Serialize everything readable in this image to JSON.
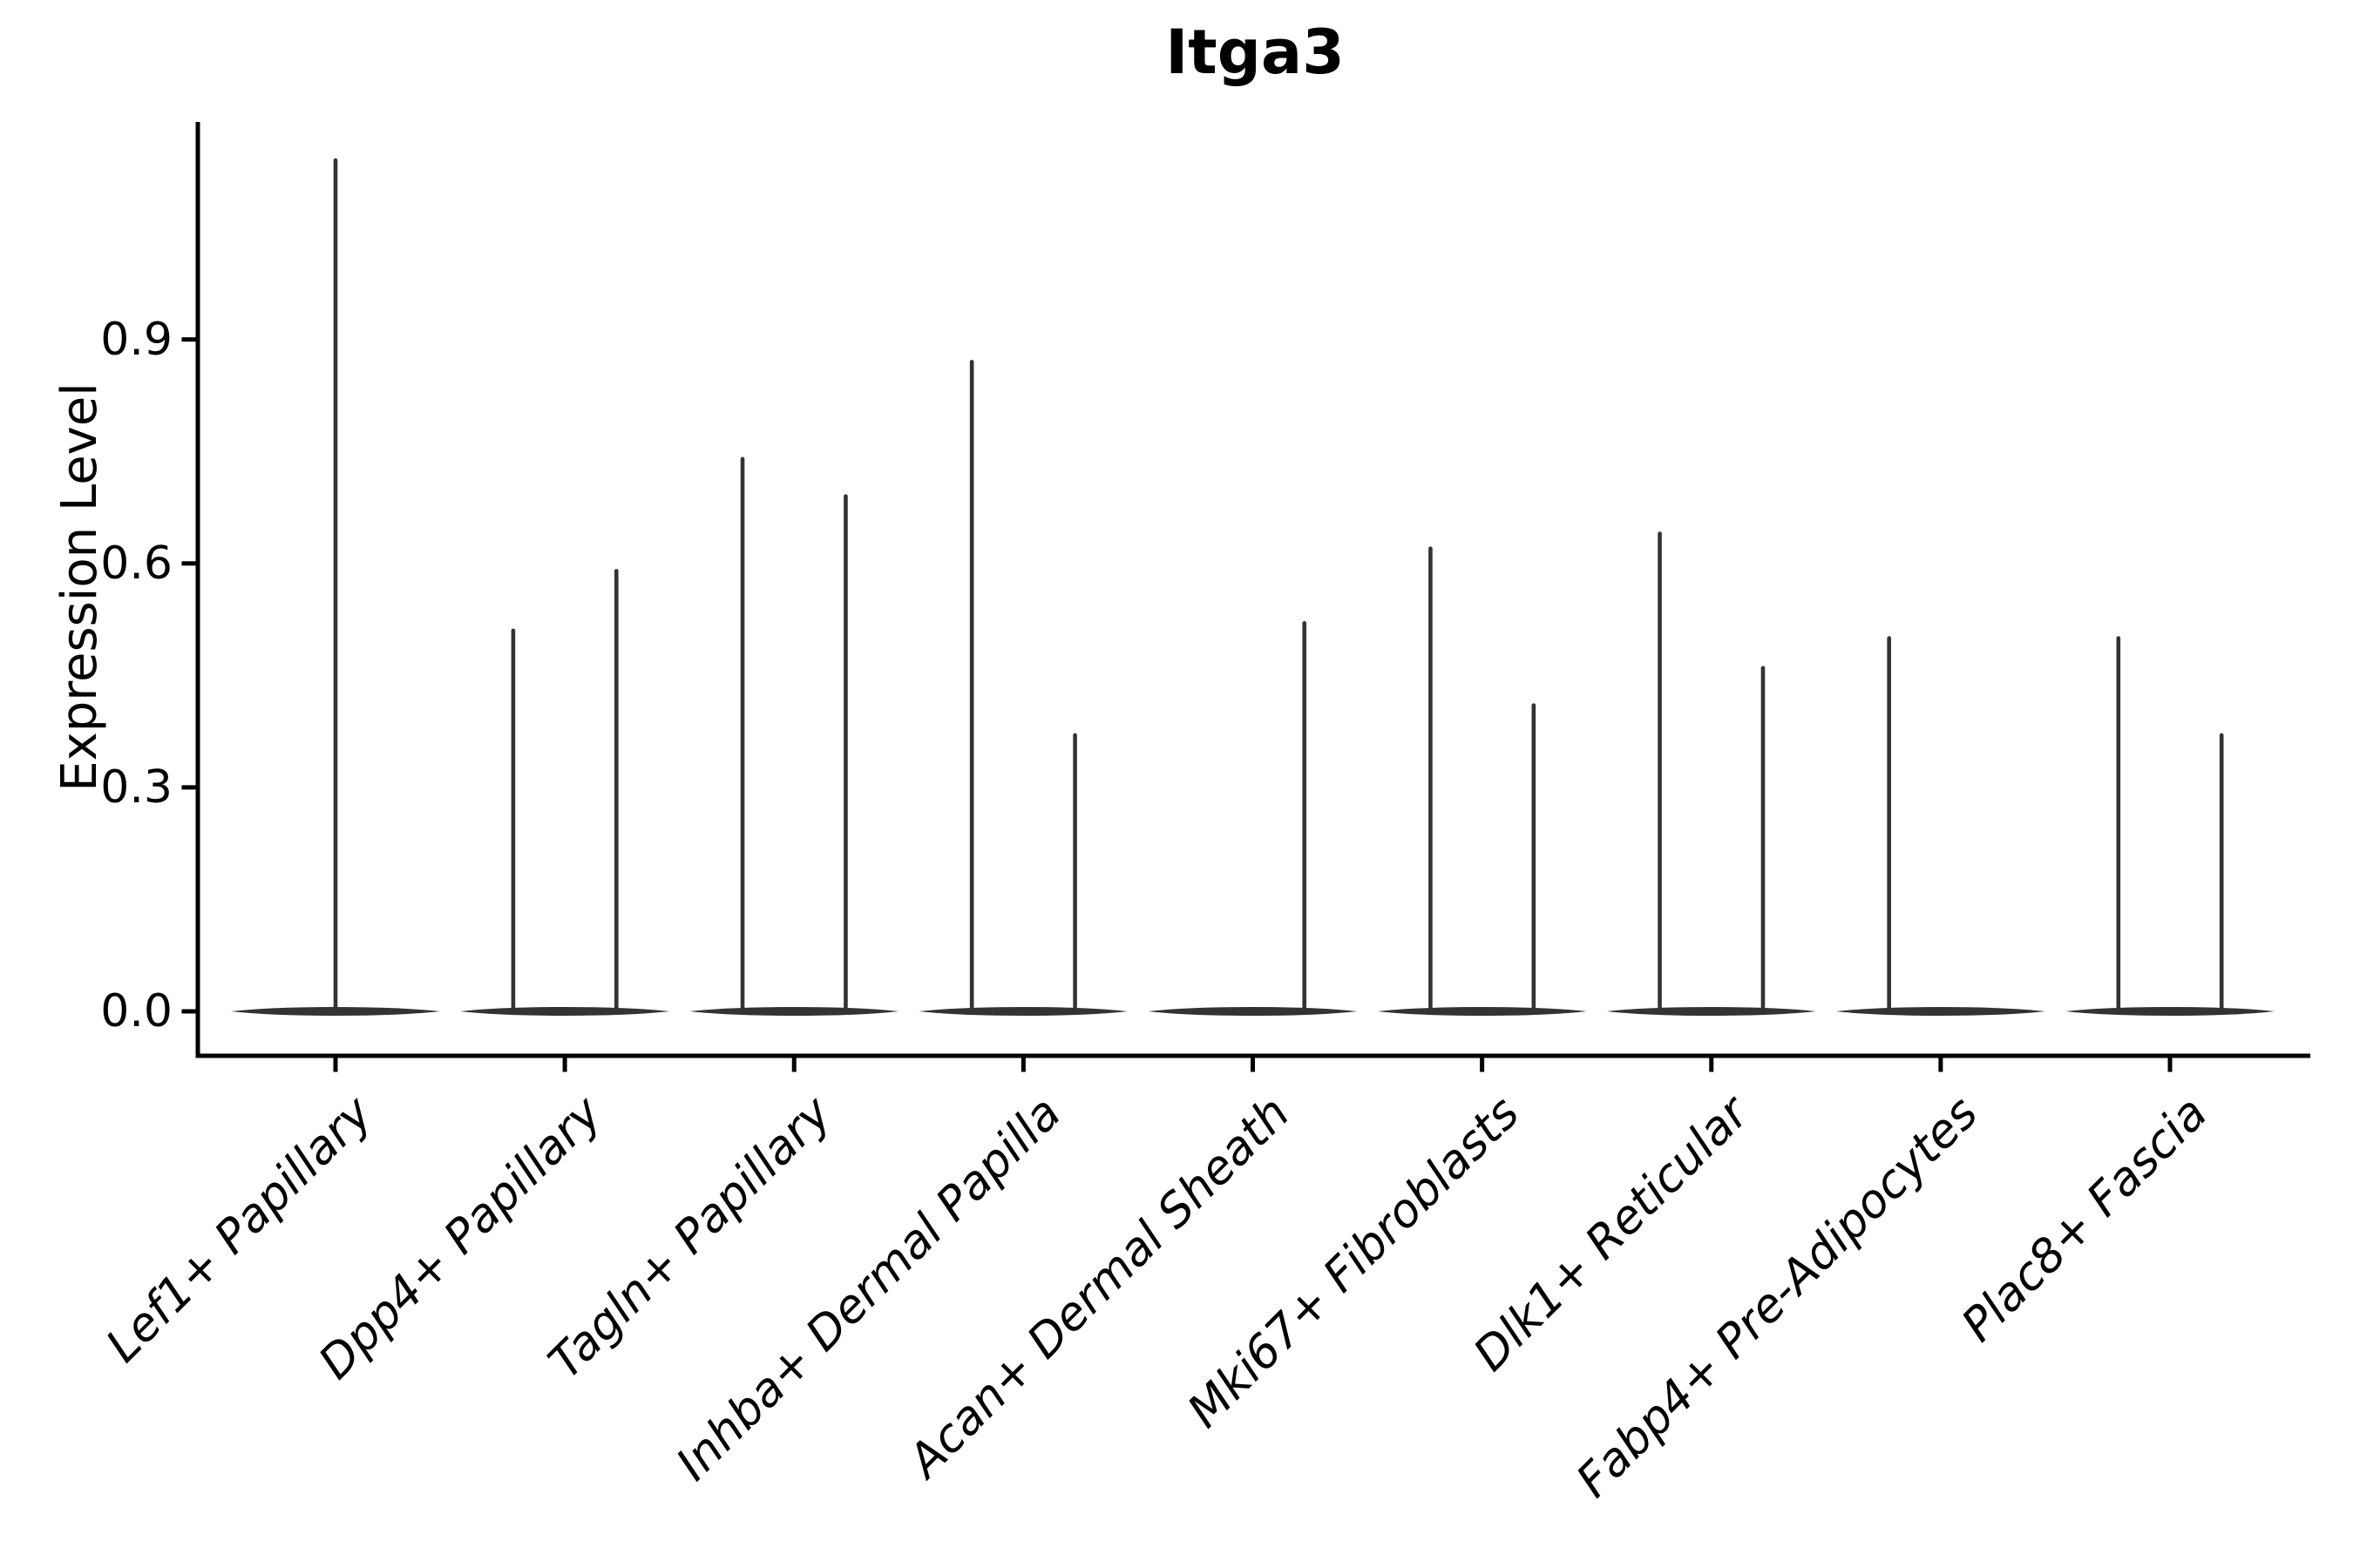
{
  "title": "Itga3",
  "axes": {
    "ylabel": "Expression Level",
    "ytick_labels": [
      "0.0",
      "0.3",
      "0.6",
      "0.9"
    ]
  },
  "chart_data": {
    "type": "violin",
    "title": "Itga3",
    "xlabel": "",
    "ylabel": "Expression Level",
    "ylim": [
      -0.06,
      1.19
    ],
    "yticks": [
      0.0,
      0.3,
      0.6,
      0.9
    ],
    "grid": false,
    "legend_position": "none",
    "categories": [
      "Lef1+ Papillary",
      "Dpp4+ Papillary",
      "Tagln+ Papillary",
      "Inhba+ Dermal Papilla",
      "Acan+ Dermal Sheath",
      "Mki67+ Fibroblasts",
      "Dlk1+ Reticular",
      "Fabp4+ Pre-Adipocytes",
      "Plac8+ Fascia"
    ],
    "violins": [
      {
        "category": "Lef1+ Papillary",
        "spikes": [
          {
            "offset_frac": 0.0,
            "max": 1.14
          }
        ]
      },
      {
        "category": "Dpp4+ Papillary",
        "spikes": [
          {
            "offset_frac": -0.225,
            "max": 0.51
          },
          {
            "offset_frac": 0.225,
            "max": 0.59
          }
        ]
      },
      {
        "category": "Tagln+ Papillary",
        "spikes": [
          {
            "offset_frac": -0.225,
            "max": 0.74
          },
          {
            "offset_frac": 0.225,
            "max": 0.69
          }
        ]
      },
      {
        "category": "Inhba+ Dermal Papilla",
        "spikes": [
          {
            "offset_frac": -0.225,
            "max": 0.87
          },
          {
            "offset_frac": 0.225,
            "max": 0.37
          }
        ]
      },
      {
        "category": "Acan+ Dermal Sheath",
        "spikes": [
          {
            "offset_frac": 0.225,
            "max": 0.52
          }
        ]
      },
      {
        "category": "Mki67+ Fibroblasts",
        "spikes": [
          {
            "offset_frac": -0.225,
            "max": 0.62
          },
          {
            "offset_frac": 0.225,
            "max": 0.41
          }
        ]
      },
      {
        "category": "Dlk1+ Reticular",
        "spikes": [
          {
            "offset_frac": -0.225,
            "max": 0.64
          },
          {
            "offset_frac": 0.225,
            "max": 0.46
          }
        ]
      },
      {
        "category": "Fabp4+ Pre-Adipocytes",
        "spikes": [
          {
            "offset_frac": -0.225,
            "max": 0.5
          }
        ]
      },
      {
        "category": "Plac8+ Fascia",
        "spikes": [
          {
            "offset_frac": -0.225,
            "max": 0.5
          },
          {
            "offset_frac": 0.225,
            "max": 0.37
          }
        ]
      }
    ],
    "colors": {
      "violin": "#333333",
      "spine": "#000000",
      "text": "#000000",
      "background": "#ffffff"
    }
  }
}
